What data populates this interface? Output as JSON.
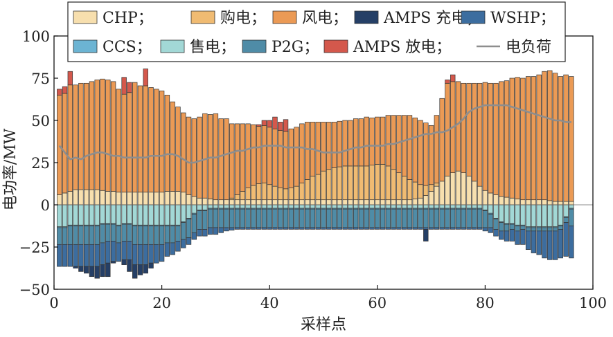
{
  "chart_data": {
    "type": "bar",
    "stacked": true,
    "xlabel": "采样点",
    "ylabel": "电功率/MW",
    "xlim": [
      0,
      100
    ],
    "ylim": [
      -50,
      100
    ],
    "xticks": [
      "0",
      "20",
      "40",
      "60",
      "80",
      "100"
    ],
    "yticks": [
      "−50",
      "−25",
      "0",
      "25",
      "50",
      "75",
      "100"
    ],
    "legend_position": "top",
    "colors": {
      "CHP": "#f7dfae",
      "buy": "#f0bb72",
      "wind": "#eb9a55",
      "amps_charge": "#253f66",
      "wshp": "#3c6d9f",
      "ccs": "#6cb4d3",
      "sell": "#a2d8d6",
      "p2g": "#4f8ca7",
      "amps_discharge": "#d4584c",
      "load": "#8e8e8e"
    },
    "legend": [
      {
        "label": "CHP；",
        "key": "CHP",
        "kind": "patch"
      },
      {
        "label": "购电；",
        "key": "buy",
        "kind": "patch"
      },
      {
        "label": "风电；",
        "key": "wind",
        "kind": "patch"
      },
      {
        "label": "AMPS 充电；",
        "key": "amps_charge",
        "kind": "patch"
      },
      {
        "label": "WSHP；",
        "key": "wshp",
        "kind": "patch"
      },
      {
        "label": "CCS；",
        "key": "ccs",
        "kind": "patch"
      },
      {
        "label": "售电；",
        "key": "sell",
        "kind": "patch"
      },
      {
        "label": "P2G；",
        "key": "p2g",
        "kind": "patch"
      },
      {
        "label": "AMPS 放电；",
        "key": "amps_discharge",
        "kind": "patch"
      },
      {
        "label": "电负荷",
        "key": "load",
        "kind": "line"
      }
    ],
    "x": [
      1,
      2,
      3,
      4,
      5,
      6,
      7,
      8,
      9,
      10,
      11,
      12,
      13,
      14,
      15,
      16,
      17,
      18,
      19,
      20,
      21,
      22,
      23,
      24,
      25,
      26,
      27,
      28,
      29,
      30,
      31,
      32,
      33,
      34,
      35,
      36,
      37,
      38,
      39,
      40,
      41,
      42,
      43,
      44,
      45,
      46,
      47,
      48,
      49,
      50,
      51,
      52,
      53,
      54,
      55,
      56,
      57,
      58,
      59,
      60,
      61,
      62,
      63,
      64,
      65,
      66,
      67,
      68,
      69,
      70,
      71,
      72,
      73,
      74,
      75,
      76,
      77,
      78,
      79,
      80,
      81,
      82,
      83,
      84,
      85,
      86,
      87,
      88,
      89,
      90,
      91,
      92,
      93,
      94,
      95,
      96
    ],
    "series": [
      {
        "name": "CHP",
        "key": "CHP",
        "values": [
          6,
          7,
          8,
          9,
          9,
          9,
          9,
          9,
          8.5,
          8,
          8,
          7.5,
          7.5,
          7.5,
          7.5,
          7.5,
          7.5,
          7.5,
          7.5,
          7.5,
          8,
          8,
          8,
          7.5,
          6,
          5,
          4,
          4,
          3.5,
          3,
          3,
          3,
          3,
          3,
          3,
          3,
          3,
          3,
          3,
          3,
          3,
          3,
          3,
          3,
          3,
          3,
          3,
          3,
          3,
          3,
          3,
          3,
          3,
          3,
          3,
          3,
          3,
          3,
          3,
          3,
          3,
          3,
          3,
          3,
          3,
          3,
          3.5,
          4,
          5.5,
          8,
          11,
          14,
          17,
          19,
          20,
          19,
          17,
          14,
          11,
          8.5,
          7,
          6,
          5,
          4.5,
          4,
          3.5,
          3,
          3,
          3,
          3,
          3,
          2.5,
          2,
          2,
          2,
          2
        ]
      },
      {
        "name": "购电",
        "key": "buy",
        "values": [
          0,
          0,
          0,
          0,
          0,
          0,
          0,
          0,
          0,
          0,
          0,
          0,
          0,
          0,
          0,
          0,
          0,
          0,
          0,
          0,
          0,
          0,
          0,
          0,
          0,
          0,
          0,
          0,
          0,
          0,
          0,
          0,
          1,
          3,
          5,
          7,
          8.5,
          9.5,
          10,
          9,
          8,
          7,
          6.5,
          7,
          8,
          10,
          12,
          14,
          15,
          17,
          18,
          19,
          19.5,
          20,
          20,
          20,
          20,
          20,
          20.5,
          21,
          21,
          20,
          18,
          16,
          14,
          12,
          10,
          8,
          6,
          4,
          2,
          0,
          0,
          0,
          0,
          0,
          0,
          0,
          0,
          0,
          0,
          0,
          0,
          0,
          0,
          0,
          0,
          0,
          0,
          0,
          0,
          0,
          0,
          0,
          0,
          0
        ]
      },
      {
        "name": "风电",
        "key": "wind",
        "values": [
          59,
          59,
          63,
          62,
          63,
          63,
          64,
          65,
          66,
          66,
          65,
          61,
          58,
          59,
          65,
          63,
          63,
          62,
          61,
          60,
          57,
          53,
          50,
          47,
          46,
          46,
          48,
          50,
          50,
          51,
          48,
          48,
          44,
          42,
          40,
          38,
          36,
          34,
          34,
          34,
          34,
          34,
          34,
          35,
          35,
          35,
          34,
          32,
          31,
          29,
          28,
          27,
          27,
          27,
          27,
          28,
          28,
          29,
          28,
          28,
          28,
          30,
          32,
          34,
          36,
          38,
          38,
          38,
          37,
          35,
          40,
          49,
          55,
          54,
          53,
          53,
          55,
          58,
          61,
          64,
          65,
          66,
          68,
          69,
          71,
          72,
          72,
          73,
          73,
          74,
          76,
          77,
          76,
          74,
          75,
          74
        ]
      },
      {
        "name": "AMPS 放电",
        "key": "amps_discharge",
        "values": [
          3.5,
          4,
          8,
          0,
          0,
          0,
          0,
          0,
          0,
          0,
          0,
          0,
          10,
          6,
          0,
          0,
          10,
          0,
          0,
          0,
          0,
          0,
          0,
          0,
          0,
          0,
          0,
          0,
          0,
          0,
          0,
          0,
          0,
          0,
          0,
          0,
          0,
          1,
          3,
          4,
          7,
          5,
          7,
          0,
          0,
          0,
          0,
          0,
          0,
          0,
          0,
          0,
          0,
          0,
          0,
          0,
          0,
          0,
          0,
          0,
          0,
          0,
          0,
          0,
          0,
          0,
          0,
          0,
          0,
          0,
          0,
          0,
          2,
          4,
          0,
          0,
          0,
          0,
          0,
          0,
          0,
          0,
          0,
          0,
          0,
          0,
          0,
          0,
          0,
          0,
          0,
          0,
          0,
          0,
          0,
          0
        ]
      },
      {
        "name": "售电",
        "key": "sell",
        "values": [
          -13,
          -13,
          -12,
          -12,
          -12,
          -12,
          -12,
          -12,
          -11,
          -11,
          -11,
          -12,
          -11,
          -11,
          -12,
          -12,
          -12,
          -12,
          -12,
          -12,
          -12,
          -12,
          -12,
          -10,
          -8,
          -5,
          -3,
          -3,
          -2,
          -2,
          -2,
          -2,
          -2,
          -2,
          -2,
          -2,
          -2,
          -2,
          -2,
          -2,
          -2,
          -2,
          -2,
          -2,
          -2,
          -2,
          -2,
          -2,
          -2,
          -2,
          -2,
          -2,
          -2,
          -2,
          -2,
          -2,
          -2,
          -2,
          -2,
          -2,
          -2,
          -2,
          -2,
          -2,
          -2,
          -2,
          -2,
          -2,
          -2,
          -2,
          -2,
          -2,
          -2,
          -2,
          -2,
          -2,
          -2,
          -2,
          -2,
          -3,
          -5,
          -8,
          -10,
          -11,
          -11,
          -12,
          -12,
          -13,
          -13,
          -13,
          -13,
          -13,
          -13,
          -12,
          -7,
          -2
        ]
      },
      {
        "name": "CCS",
        "key": "ccs",
        "values": [
          -0.5,
          -0.5,
          -0.5,
          -0.5,
          -0.5,
          -0.5,
          -0.5,
          -0.5,
          -0.5,
          -0.5,
          -0.5,
          -0.5,
          -0.5,
          -0.5,
          -0.5,
          -0.5,
          -0.5,
          -0.5,
          -0.5,
          -0.5,
          -0.5,
          -0.5,
          -0.5,
          -0.5,
          -0.5,
          -0.5,
          -0.5,
          -0.5,
          -0.5,
          -0.5,
          -0.5,
          -0.5,
          -0.5,
          -0.5,
          -0.5,
          -0.5,
          -0.5,
          -0.5,
          -0.5,
          -0.5,
          -0.5,
          -0.5,
          -0.5,
          -0.5,
          -0.5,
          -0.5,
          -0.5,
          -0.5,
          -0.5,
          -0.5,
          -0.5,
          -0.5,
          -0.5,
          -0.5,
          -0.5,
          -0.5,
          -0.5,
          -0.5,
          -0.5,
          -0.5,
          -0.5,
          -0.5,
          -0.5,
          -0.5,
          -0.5,
          -0.5,
          -0.5,
          -0.5,
          -0.5,
          -0.5,
          -0.5,
          -0.5,
          -0.5,
          -0.5,
          -0.5,
          -0.5,
          -0.5,
          -0.5,
          -0.5,
          -0.5,
          -0.5,
          -0.5,
          -0.5,
          -0.5,
          -0.5,
          -0.5,
          -0.5,
          -0.5,
          -0.5,
          -0.5,
          -0.5,
          -0.5,
          -0.5,
          -0.5,
          -0.5,
          -0.5
        ]
      },
      {
        "name": "P2G",
        "key": "p2g",
        "values": [
          -10,
          -10,
          -11,
          -11,
          -11,
          -11,
          -11,
          -11,
          -11,
          -10,
          -10,
          -10,
          -10,
          -10,
          -11,
          -11,
          -11,
          -11,
          -11,
          -11,
          -10,
          -10,
          -9,
          -10,
          -11,
          -11,
          -11,
          -11,
          -11,
          -11,
          -11,
          -11,
          -11,
          -11,
          -11,
          -11,
          -11,
          -11,
          -11,
          -11,
          -11,
          -11,
          -11,
          -11,
          -11,
          -11,
          -11,
          -11,
          -11,
          -11,
          -11,
          -11,
          -11,
          -11,
          -11,
          -11,
          -11,
          -11,
          -11,
          -11,
          -11,
          -11,
          -11,
          -11,
          -11,
          -11,
          -11,
          -11,
          -11,
          -11,
          -11,
          -11,
          -11,
          -11,
          -11,
          -11,
          -11,
          -11,
          -11,
          -10,
          -8,
          -6,
          -5,
          -4,
          -3,
          -3,
          -2,
          -2,
          -2,
          -2,
          -2,
          -2,
          -2,
          -2,
          -3,
          -10
        ]
      },
      {
        "name": "WSHP",
        "key": "wshp",
        "values": [
          -13,
          -13,
          -13,
          -13,
          -13,
          -13,
          -13,
          -13,
          -13,
          -13,
          -12,
          -11,
          -11,
          -11,
          -12,
          -12,
          -12,
          -11,
          -11,
          -10,
          -8,
          -7,
          -6,
          -5,
          -4,
          -4,
          -4,
          -4,
          -4,
          -4,
          -3,
          -2,
          -1.5,
          -1,
          -1,
          -1,
          -1,
          -1,
          -1,
          -1,
          -1,
          -1,
          -1,
          -1,
          -1,
          -1,
          -1,
          -1,
          -1,
          -1,
          -1,
          -1,
          -1,
          -1,
          -1,
          -1,
          -1,
          -1,
          -1,
          -1,
          -1,
          -1,
          -1,
          -1,
          -1,
          -1,
          -1,
          -1,
          -1,
          -1,
          -1,
          -1,
          -1,
          -1,
          -1,
          -1,
          -1,
          -1,
          -1,
          -2,
          -3,
          -4,
          -5,
          -6,
          -7,
          -8,
          -9,
          -11,
          -13,
          -14,
          -16,
          -17,
          -17,
          -17,
          -20,
          -19
        ]
      },
      {
        "name": "AMPS 充电",
        "key": "amps_charge",
        "values": [
          0,
          0,
          0,
          -1,
          -3,
          -4,
          -6,
          -7,
          -7,
          -8,
          -1,
          0,
          -3,
          -7,
          -8,
          -6,
          -5,
          -3,
          0,
          0,
          0,
          0,
          0,
          0,
          0,
          0,
          0,
          0,
          0,
          0,
          0,
          0,
          0,
          0,
          0,
          0,
          0,
          0,
          0,
          0,
          0,
          0,
          0,
          0,
          0,
          0,
          0,
          0,
          0,
          0,
          0,
          0,
          0,
          0,
          0,
          0,
          0,
          0,
          0,
          0,
          0,
          0,
          0,
          0,
          0,
          0,
          0,
          0,
          -7,
          0,
          0,
          0,
          0,
          0,
          0,
          0,
          0,
          0,
          0,
          0,
          0,
          0,
          0,
          0,
          0,
          0,
          0,
          0,
          0,
          0,
          0,
          0,
          0,
          0,
          0,
          0
        ]
      }
    ],
    "load": {
      "name": "电负荷",
      "values": [
        35,
        31,
        27,
        28,
        27,
        29,
        30,
        31,
        31,
        30,
        29,
        29,
        28,
        28,
        28,
        28,
        28,
        29,
        29,
        29,
        30,
        30,
        29,
        27,
        25,
        25,
        26,
        27,
        28,
        28,
        29,
        30,
        31,
        32,
        32,
        33,
        34,
        34,
        35,
        35,
        35,
        35,
        34,
        34,
        34,
        34,
        33,
        33,
        32,
        31,
        31,
        31,
        31,
        32,
        33,
        34,
        34,
        35,
        35,
        35,
        35,
        36,
        36,
        37,
        38,
        39,
        40,
        41,
        42,
        42,
        43,
        43,
        44,
        46,
        48,
        51,
        55,
        57,
        58,
        59,
        59,
        59,
        59,
        59,
        58,
        57,
        56,
        55,
        54,
        53,
        52,
        51,
        50,
        50,
        49,
        49
      ]
    }
  }
}
